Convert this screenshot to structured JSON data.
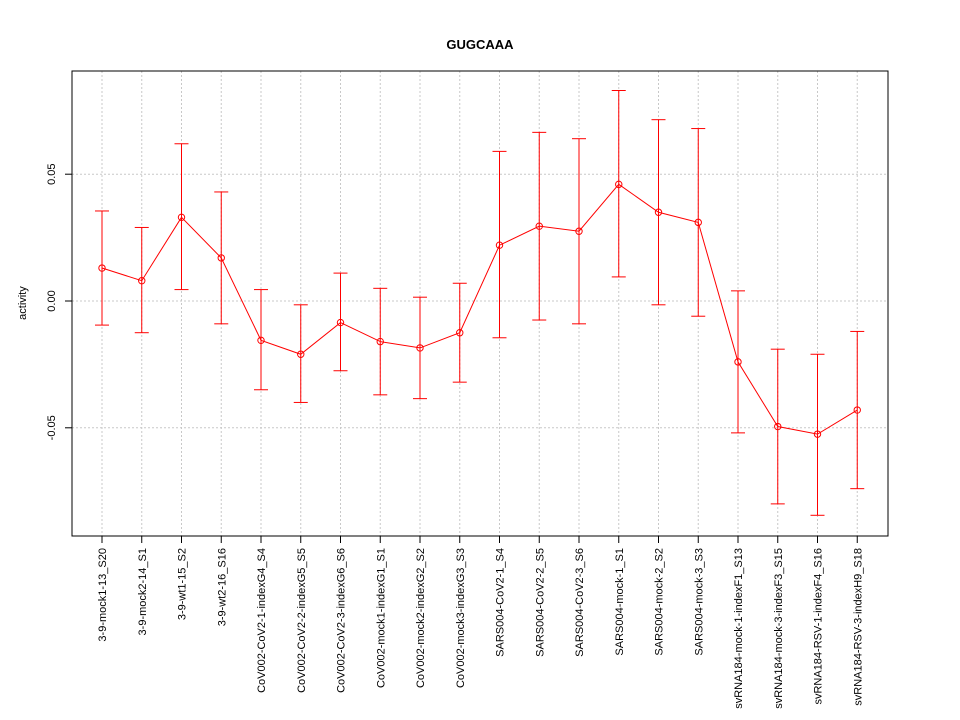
{
  "colors": {
    "series": "#ff0000",
    "grid": "#c8c8c8",
    "axis": "#000000"
  },
  "chart_data": {
    "type": "line",
    "title": "GUGCAAA",
    "xlabel": "",
    "ylabel": "activity",
    "ylim": [
      -0.09,
      0.09
    ],
    "yticks": [
      -0.05,
      0.0,
      0.05
    ],
    "ytick_labels": [
      "-0.05",
      "0.00",
      "0.05"
    ],
    "grid": true,
    "error_bars": true,
    "categories": [
      "3-9-mock1-13_S20",
      "3-9-mock2-14_S1",
      "3-9-wt1-15_S2",
      "3-9-wt2-16_S16",
      "CoV002-CoV2-1-indexG4_S4",
      "CoV002-CoV2-2-indexG5_S5",
      "CoV002-CoV2-3-indexG6_S6",
      "CoV002-mock1-indexG1_S1",
      "CoV002-mock2-indexG2_S2",
      "CoV002-mock3-indexG3_S3",
      "SARS004-CoV2-1_S4",
      "SARS004-CoV2-2_S5",
      "SARS004-CoV2-3_S6",
      "SARS004-mock-1_S1",
      "SARS004-mock-2_S2",
      "SARS004-mock-3_S3",
      "svRNA184-mock-1-indexF1_S13",
      "svRNA184-mock-3-indexF3_S15",
      "svRNA184-RSV-1-indexF4_S16",
      "svRNA184-RSV-3-indexH9_S18"
    ],
    "series": [
      {
        "values": [
          0.013,
          0.008,
          0.033,
          0.017,
          -0.0155,
          -0.021,
          -0.0085,
          -0.016,
          -0.0185,
          -0.0125,
          0.022,
          0.0295,
          0.0275,
          0.046,
          0.035,
          0.031,
          -0.024,
          -0.0495,
          -0.0525,
          -0.043
        ],
        "lower": [
          -0.0095,
          -0.0125,
          0.0045,
          -0.009,
          -0.035,
          -0.04,
          -0.0275,
          -0.037,
          -0.0385,
          -0.032,
          -0.0145,
          -0.0075,
          -0.009,
          0.0095,
          -0.0015,
          -0.006,
          -0.052,
          -0.08,
          -0.0845,
          -0.074
        ],
        "upper": [
          0.0355,
          0.029,
          0.062,
          0.043,
          0.0045,
          -0.0015,
          0.011,
          0.005,
          0.0015,
          0.007,
          0.059,
          0.0665,
          0.064,
          0.083,
          0.0715,
          0.068,
          0.004,
          -0.019,
          -0.021,
          -0.012
        ]
      }
    ]
  }
}
